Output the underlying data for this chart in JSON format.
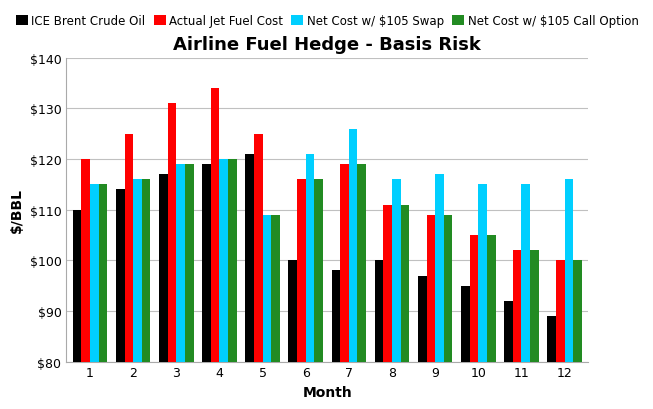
{
  "title": "Airline Fuel Hedge - Basis Risk",
  "xlabel": "Month",
  "ylabel": "$/BBL",
  "months": [
    1,
    2,
    3,
    4,
    5,
    6,
    7,
    8,
    9,
    10,
    11,
    12
  ],
  "ice_brent": [
    110,
    114,
    117,
    119,
    121,
    100,
    98,
    100,
    97,
    95,
    92,
    89
  ],
  "actual_jet": [
    120,
    125,
    131,
    134,
    125,
    116,
    119,
    111,
    109,
    105,
    102,
    100
  ],
  "net_swap": [
    115,
    116,
    119,
    120,
    109,
    121,
    126,
    116,
    117,
    115,
    115,
    116
  ],
  "net_call": [
    115,
    116,
    119,
    120,
    109,
    116,
    119,
    111,
    109,
    105,
    102,
    100
  ],
  "ylim": [
    80,
    140
  ],
  "yticks": [
    80,
    90,
    100,
    110,
    120,
    130,
    140
  ],
  "colors": {
    "ice_brent": "#000000",
    "actual_jet": "#FF0000",
    "net_swap": "#00CFFF",
    "net_call": "#228B22"
  },
  "legend_labels": [
    "ICE Brent Crude Oil",
    "Actual Jet Fuel Cost",
    "Net Cost w/ $105 Swap",
    "Net Cost w/ $105 Call Option"
  ],
  "background_color": "#FFFFFF",
  "grid_color": "#C0C0C0",
  "title_fontsize": 13,
  "label_fontsize": 10,
  "tick_fontsize": 9,
  "legend_fontsize": 8.5
}
